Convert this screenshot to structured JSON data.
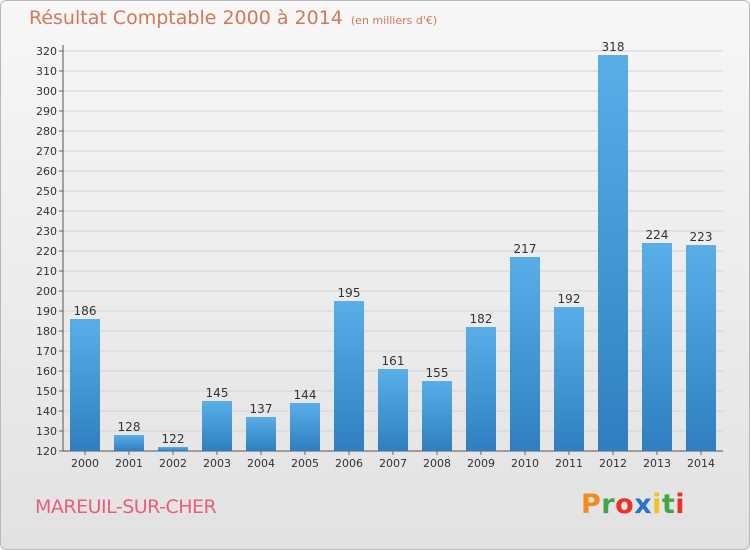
{
  "header": {
    "title": "Résultat Comptable 2000 à 2014",
    "subtitle": "(en milliers d'€)"
  },
  "footer": {
    "commune": "MAREUIL-SUR-CHER",
    "logo_text": "Proxiti"
  },
  "colors": {
    "title": "#d07a57",
    "bar_top": "#5aaee8",
    "bar_bottom": "#2f7fc0",
    "commune": "#e85f78",
    "logo_letters": [
      "#f28c1e",
      "#3fa64a",
      "#e8332a",
      "#2b73c7",
      "#f0c419",
      "#3fa64a",
      "#e8332a"
    ]
  },
  "chart_data": {
    "type": "bar",
    "categories": [
      "2000",
      "2001",
      "2002",
      "2003",
      "2004",
      "2005",
      "2006",
      "2007",
      "2008",
      "2009",
      "2010",
      "2011",
      "2012",
      "2013",
      "2014"
    ],
    "values": [
      186,
      128,
      122,
      145,
      137,
      144,
      195,
      161,
      155,
      182,
      217,
      192,
      318,
      224,
      223
    ],
    "title": "Résultat Comptable 2000 à 2014",
    "ylim": [
      120,
      320
    ],
    "yticks": [
      120,
      130,
      140,
      150,
      160,
      170,
      180,
      190,
      200,
      210,
      220,
      230,
      240,
      250,
      260,
      270,
      280,
      290,
      300,
      310,
      320
    ],
    "grid": true,
    "data_labels": true
  }
}
